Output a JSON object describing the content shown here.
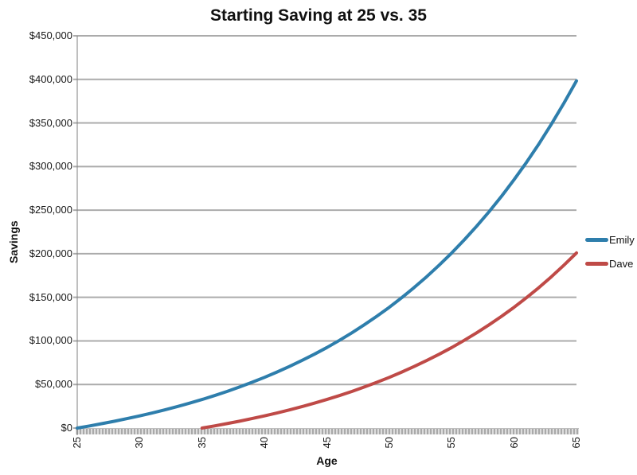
{
  "title": "Starting Saving at 25 vs. 35",
  "colors": {
    "emily_line": "#2E7EAC",
    "dave_line": "#BF4A47",
    "gridline": "#ABABAB",
    "axis_line": "#7F7F7F",
    "band_dash": "#A9A9A9",
    "band_bg": "#DDDDDD",
    "text": "#111111"
  },
  "chart_data": {
    "type": "line",
    "title": "Starting Saving at 25 vs. 35",
    "xlabel": "Age",
    "ylabel": "Savings",
    "x_start": 25,
    "x_end": 65,
    "xlim": [
      25,
      65
    ],
    "ylim": [
      0,
      450000
    ],
    "y_tick_step": 50000,
    "x_tick_step": 5,
    "grid": "horizontal",
    "legend_position": "right",
    "x_ticks": [
      25,
      30,
      35,
      40,
      45,
      50,
      55,
      60,
      65
    ],
    "x_tick_labels": [
      "25",
      "30",
      "35",
      "40",
      "45",
      "50",
      "55",
      "60",
      "65"
    ],
    "y_tick_labels": [
      "$0",
      "$50,000",
      "$100,000",
      "$150,000",
      "$200,000",
      "$250,000",
      "$300,000",
      "$350,000",
      "$400,000",
      "$450,000"
    ],
    "x": [
      25,
      26,
      27,
      28,
      29,
      30,
      31,
      32,
      33,
      34,
      35,
      36,
      37,
      38,
      39,
      40,
      41,
      42,
      43,
      44,
      45,
      46,
      47,
      48,
      49,
      50,
      51,
      52,
      53,
      54,
      55,
      56,
      57,
      58,
      59,
      60,
      61,
      62,
      63,
      64,
      65
    ],
    "series": [
      {
        "name": "Emily",
        "color": "#2E7EAC",
        "start_age": 25,
        "values": [
          0,
          2467,
          5086,
          7867,
          10820,
          13954,
          17282,
          20815,
          24566,
          28548,
          32776,
          37265,
          42030,
          47089,
          52461,
          58164,
          64218,
          70646,
          77471,
          84716,
          92408,
          100575,
          109245,
          118450,
          128223,
          138599,
          149614,
          161309,
          173726,
          186908,
          200903,
          215761,
          231536,
          248284,
          266065,
          284942,
          304984,
          326262,
          348852,
          372835,
          398298
        ]
      },
      {
        "name": "Dave",
        "color": "#BF4A47",
        "start_age": 35,
        "values": [
          null,
          null,
          null,
          null,
          null,
          null,
          null,
          null,
          null,
          null,
          0,
          2467,
          5086,
          7867,
          10820,
          13954,
          17282,
          20815,
          24566,
          28548,
          32776,
          37265,
          42030,
          47089,
          52461,
          58164,
          64218,
          70646,
          77471,
          84716,
          92408,
          100575,
          109245,
          118450,
          128223,
          138599,
          149614,
          161309,
          173726,
          186908,
          200903
        ]
      }
    ]
  }
}
